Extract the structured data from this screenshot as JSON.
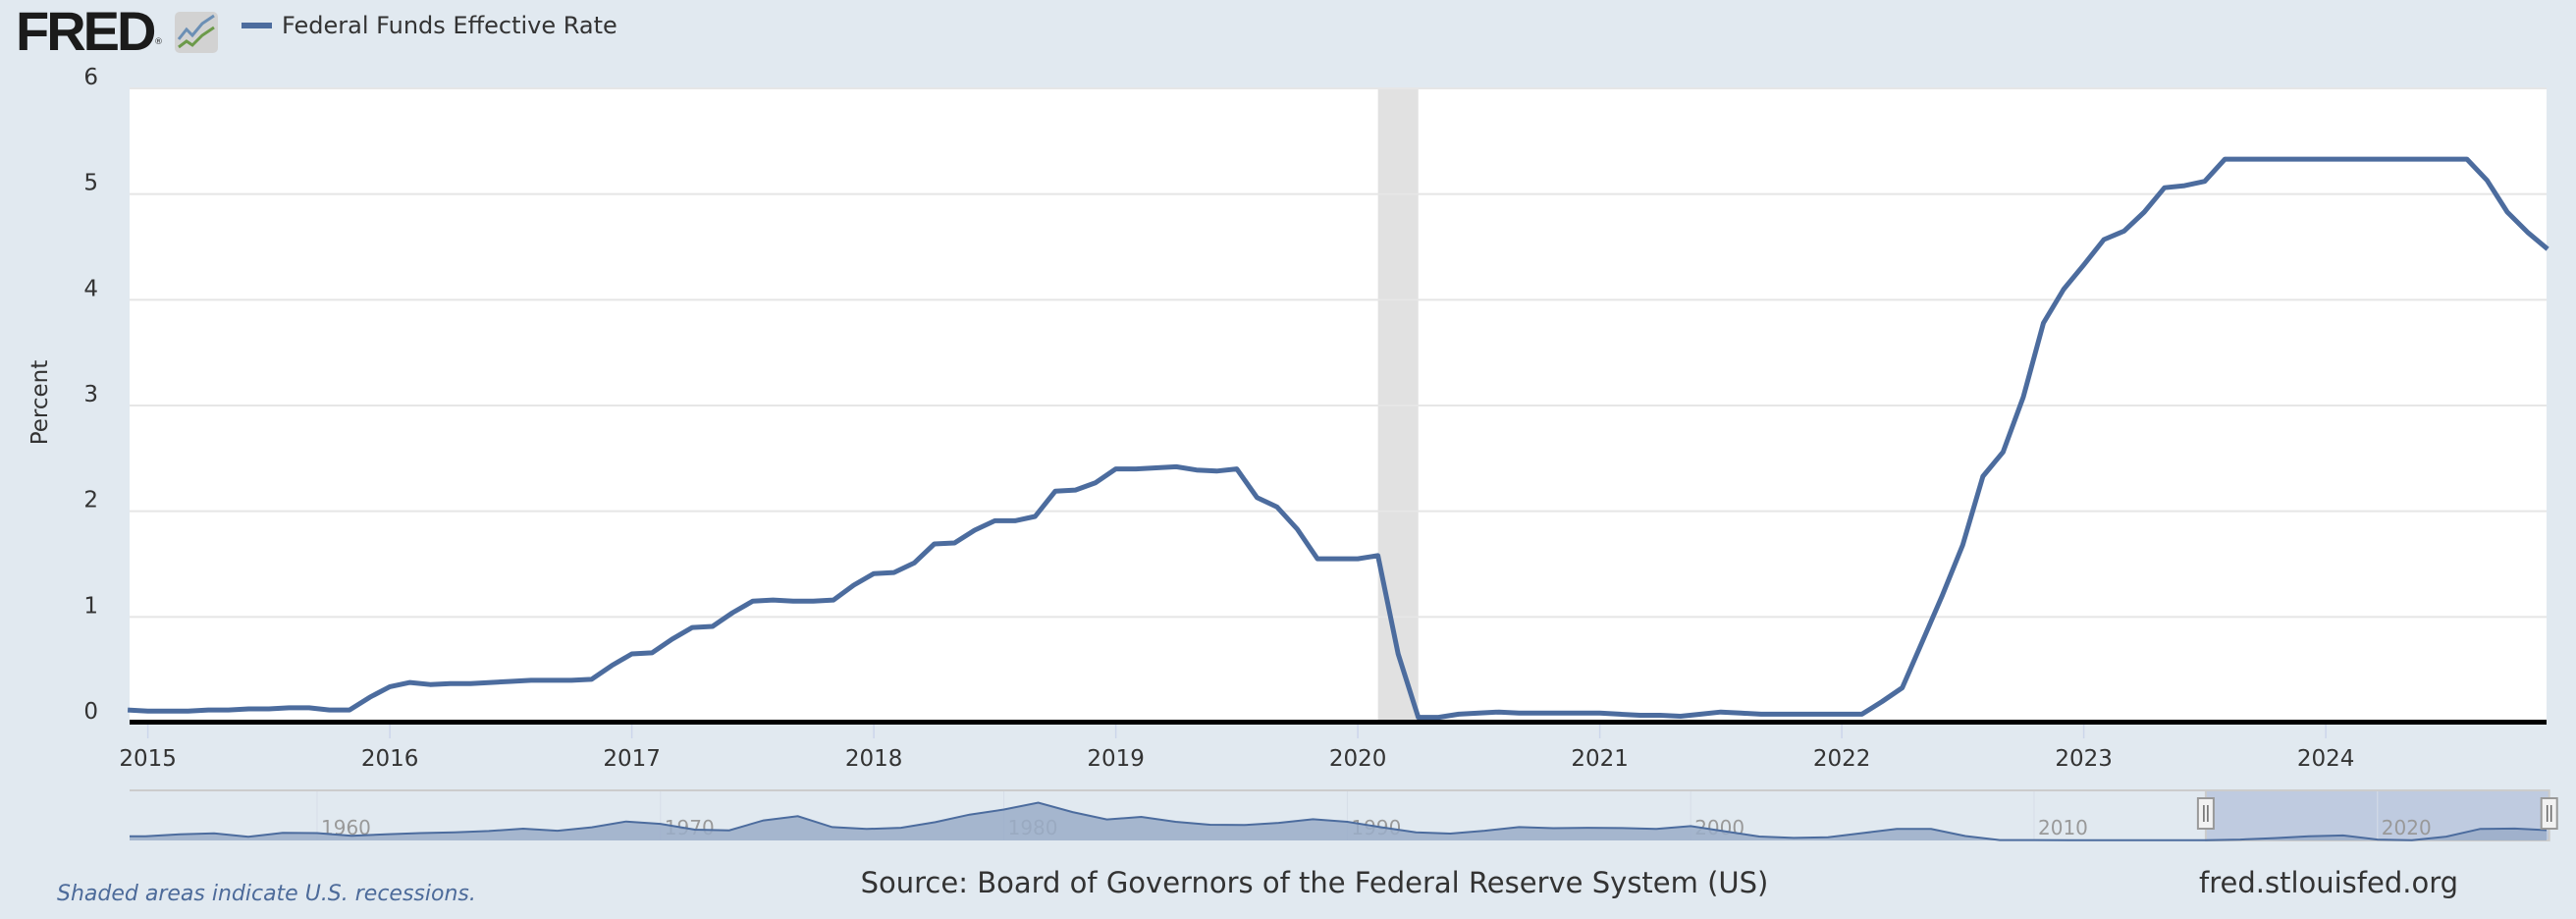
{
  "header": {
    "logo_text": "FRED",
    "legend_label": "Federal Funds Effective Rate"
  },
  "footer": {
    "recession_note": "Shaded areas indicate U.S. recessions.",
    "source": "Source: Board of Governors of the Federal Reserve System (US)",
    "site": "fred.stlouisfed.org"
  },
  "colors": {
    "series": "#4c6c9e",
    "background": "#e1e9f0",
    "plot_background": "#ffffff",
    "recession": "#e1e1e1",
    "navigator_fill": "#9aadc8",
    "navigator_selection": "#bfcbe0"
  },
  "chart_data": {
    "type": "line",
    "title": "",
    "ylabel": "Percent",
    "xlabel": "",
    "ylim": [
      0,
      6
    ],
    "yticks": [
      "0",
      "1",
      "2",
      "3",
      "4",
      "5",
      "6"
    ],
    "xticks": [
      "2015",
      "2016",
      "2017",
      "2018",
      "2019",
      "2020",
      "2021",
      "2022",
      "2023",
      "2024"
    ],
    "grid": true,
    "legend": "top-left",
    "frequency": "monthly",
    "start": "2014-12",
    "recessions": [
      [
        "2020-02",
        "2020-04"
      ]
    ],
    "series": [
      {
        "name": "Federal Funds Effective Rate",
        "values": [
          0.12,
          0.11,
          0.11,
          0.11,
          0.12,
          0.12,
          0.13,
          0.13,
          0.14,
          0.14,
          0.12,
          0.12,
          0.24,
          0.34,
          0.38,
          0.36,
          0.37,
          0.37,
          0.38,
          0.39,
          0.4,
          0.4,
          0.4,
          0.41,
          0.54,
          0.65,
          0.66,
          0.79,
          0.9,
          0.91,
          1.04,
          1.15,
          1.16,
          1.15,
          1.15,
          1.16,
          1.3,
          1.41,
          1.42,
          1.51,
          1.69,
          1.7,
          1.82,
          1.91,
          1.91,
          1.95,
          2.19,
          2.2,
          2.27,
          2.4,
          2.4,
          2.41,
          2.42,
          2.39,
          2.38,
          2.4,
          2.13,
          2.04,
          1.83,
          1.55,
          1.55,
          1.55,
          1.58,
          0.65,
          0.05,
          0.05,
          0.08,
          0.09,
          0.1,
          0.09,
          0.09,
          0.09,
          0.09,
          0.09,
          0.08,
          0.07,
          0.07,
          0.06,
          0.08,
          0.1,
          0.09,
          0.08,
          0.08,
          0.08,
          0.08,
          0.08,
          0.08,
          0.2,
          0.33,
          0.77,
          1.21,
          1.68,
          2.33,
          2.56,
          3.08,
          3.78,
          4.1,
          4.33,
          4.57,
          4.65,
          4.83,
          5.06,
          5.08,
          5.12,
          5.33,
          5.33,
          5.33,
          5.33,
          5.33,
          5.33,
          5.33,
          5.33,
          5.33,
          5.33,
          5.33,
          5.33,
          5.33,
          5.13,
          4.83,
          4.64,
          4.48
        ]
      }
    ],
    "navigator": {
      "xticks": [
        "1960",
        "1970",
        "1980",
        "1990",
        "2000",
        "2010",
        "2020"
      ],
      "selection": [
        "2015",
        "2024-12"
      ],
      "annual_start": 1955,
      "annual_values": [
        1.8,
        2.7,
        3.1,
        1.6,
        3.3,
        3.2,
        2.0,
        2.7,
        3.2,
        3.5,
        4.1,
        5.1,
        4.2,
        5.7,
        8.2,
        7.2,
        4.7,
        4.4,
        8.7,
        10.5,
        5.8,
        5.0,
        5.5,
        7.9,
        11.2,
        13.4,
        16.4,
        12.3,
        9.1,
        10.2,
        8.1,
        6.8,
        6.7,
        7.6,
        9.2,
        8.1,
        5.7,
        3.5,
        3.0,
        4.2,
        5.8,
        5.3,
        5.5,
        5.35,
        5.0,
        6.2,
        3.9,
        1.7,
        1.1,
        1.35,
        3.2,
        5.0,
        5.0,
        1.9,
        0.16,
        0.18,
        0.1,
        0.14,
        0.11,
        0.09,
        0.13,
        0.4,
        1.0,
        1.83,
        2.16,
        0.38,
        0.08,
        1.68,
        5.02,
        5.14
      ]
    }
  }
}
